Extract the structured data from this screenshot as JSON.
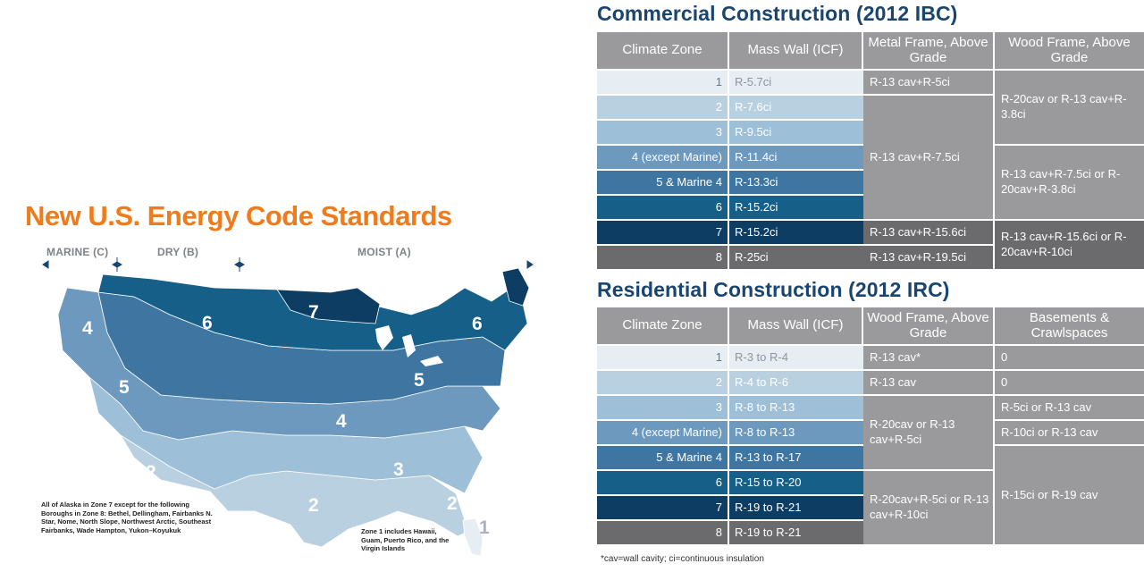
{
  "map": {
    "title": "New U.S. Energy Code Standards",
    "regions": [
      "MARINE (C)",
      "DRY (B)",
      "MOIST (A)"
    ],
    "zone_labels": [
      "4",
      "6",
      "7",
      "6",
      "5",
      "5",
      "4",
      "3",
      "2",
      "3",
      "2",
      "2",
      "1"
    ],
    "alaska_note": "All of Alaska in Zone 7 except for the following Boroughs in Zone 8: Bethel, Dellingham, Fairbanks N. Star, Nome, North Slope, Northwest Arctic, Southeast Fairbanks, Wade Hampton, Yukon–Koyukuk",
    "zone1_note": "Zone 1 includes Hawaii, Guam, Puerto Rico, and the Virgin Islands",
    "colors": {
      "zone1": "#e6edf3",
      "zone2": "#b9d0e1",
      "zone3": "#9ebfd8",
      "zone4": "#6c99bd",
      "zone5": "#3f76a1",
      "zone6": "#155f89",
      "zone7": "#0d3d63",
      "title": "#ef7b1a"
    }
  },
  "commercial": {
    "title": "Commercial Construction (2012 IBC)",
    "headers": [
      "Climate Zone",
      "Mass Wall (ICF)",
      "Metal Frame, Above Grade",
      "Wood Frame, Above Grade"
    ],
    "zones": [
      "1",
      "2",
      "3",
      "4 (except Marine)",
      "5 & Marine 4",
      "6",
      "7",
      "8"
    ],
    "mass_wall": [
      "R-5.7ci",
      "R-7.6ci",
      "R-9.5ci",
      "R-11.4ci",
      "R-13.3ci",
      "R-15.2ci",
      "R-15.2ci",
      "R-25ci"
    ],
    "metal_frame": [
      "R-13 cav+R-5ci",
      "R-13 cav+R-7.5ci",
      "R-13 cav+R-15.6ci",
      "R-13 cav+R-19.5ci"
    ],
    "wood_frame": [
      "R-20cav or R-13 cav+R-3.8ci",
      "R-13 cav+R-7.5ci or R-20cav+R-3.8ci",
      "R-13 cav+R-15.6ci or R-20cav+R-10ci"
    ]
  },
  "residential": {
    "title": "Residential Construction (2012 IRC)",
    "headers": [
      "Climate Zone",
      "Mass Wall (ICF)",
      "Wood Frame, Above Grade",
      "Basements & Crawlspaces"
    ],
    "zones": [
      "1",
      "2",
      "3",
      "4 (except Marine)",
      "5 & Marine 4",
      "6",
      "7",
      "8"
    ],
    "mass_wall": [
      "R-3 to R-4",
      "R-4 to R-6",
      "R-8 to R-13",
      "R-8 to R-13",
      "R-13 to R-17",
      "R-15 to R-20",
      "R-19 to R-21",
      "R-19 to R-21"
    ],
    "wood_frame": [
      "R-13 cav*",
      "R-13 cav",
      "R-20cav or R-13 cav+R-5ci",
      "R-20cav+R-5ci or R-13 cav+R-10ci"
    ],
    "basements": [
      "0",
      "0",
      "R-5ci or R-13 cav",
      "R-10ci or R-13 cav",
      "R-15ci or R-19 cav"
    ]
  },
  "footnote": "*cav=wall cavity; ci=continuous insulation"
}
